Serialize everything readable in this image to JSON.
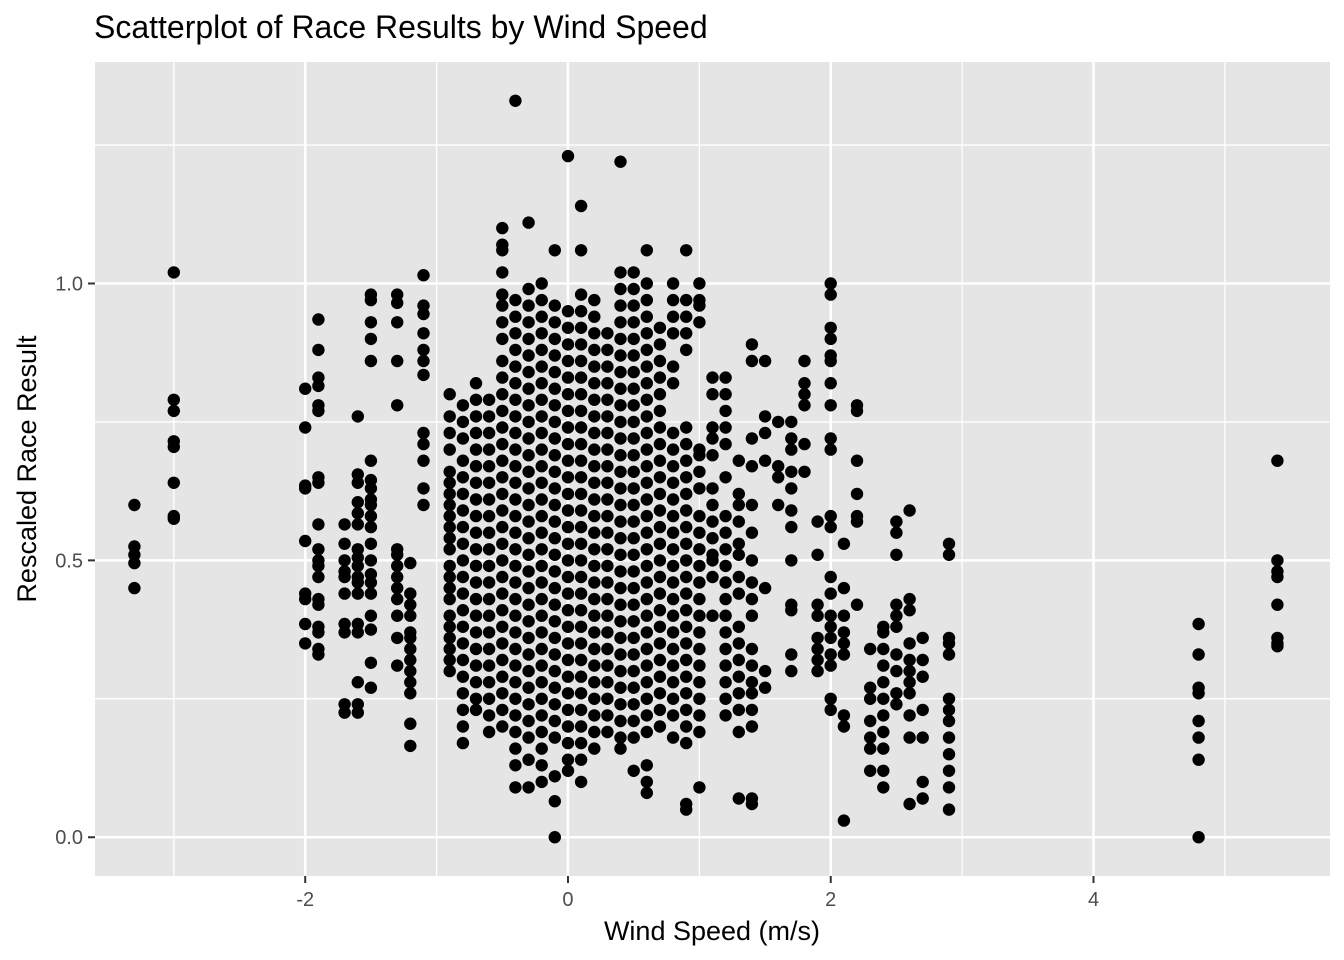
{
  "chart_data": {
    "type": "scatter",
    "title": "Scatterplot of Race Results by Wind Speed",
    "xlabel": "Wind Speed (m/s)",
    "ylabel": "Rescaled Race Result",
    "xlim": [
      -3.6,
      5.8
    ],
    "ylim": [
      -0.07,
      1.4
    ],
    "x_ticks": [
      -2,
      0,
      2,
      4
    ],
    "x_tick_labels": [
      "-2",
      "0",
      "2",
      "4"
    ],
    "y_ticks": [
      0.0,
      0.5,
      1.0
    ],
    "y_tick_labels": [
      "0.0",
      "0.5",
      "1.0"
    ],
    "grid": true,
    "legend": "none",
    "points": [
      {
        "x": -3.3,
        "y": [
          0.6,
          0.525,
          0.51,
          0.495,
          0.45
        ]
      },
      {
        "x": -3.0,
        "y": [
          1.02,
          0.79,
          0.77,
          0.715,
          0.705,
          0.64,
          0.58,
          0.575
        ]
      },
      {
        "x": -2.0,
        "y": [
          0.81,
          0.74,
          0.635,
          0.63,
          0.535,
          0.44,
          0.43,
          0.385,
          0.35
        ]
      },
      {
        "x": -1.9,
        "y": [
          0.935,
          0.88,
          0.83,
          0.815,
          0.78,
          0.77,
          0.65,
          0.64,
          0.565,
          0.52,
          0.5,
          0.49,
          0.47,
          0.43,
          0.42,
          0.38,
          0.37,
          0.34,
          0.33
        ]
      },
      {
        "x": -1.7,
        "y": [
          0.565,
          0.53,
          0.5,
          0.48,
          0.47,
          0.44,
          0.385,
          0.37,
          0.24,
          0.225
        ]
      },
      {
        "x": -1.6,
        "y": [
          0.76,
          0.655,
          0.64,
          0.605,
          0.585,
          0.565,
          0.52,
          0.505,
          0.49,
          0.47,
          0.46,
          0.44,
          0.385,
          0.37,
          0.28,
          0.24,
          0.225
        ]
      },
      {
        "x": -1.5,
        "y": [
          0.98,
          0.97,
          0.93,
          0.9,
          0.86,
          0.68,
          0.645,
          0.63,
          0.61,
          0.6,
          0.58,
          0.56,
          0.53,
          0.5,
          0.475,
          0.46,
          0.44,
          0.4,
          0.375,
          0.315,
          0.27
        ]
      },
      {
        "x": -1.3,
        "y": [
          0.98,
          0.965,
          0.93,
          0.86,
          0.78,
          0.52,
          0.51,
          0.49,
          0.47,
          0.45,
          0.43,
          0.4,
          0.36,
          0.31
        ]
      },
      {
        "x": -1.2,
        "y": [
          0.495,
          0.44,
          0.42,
          0.4,
          0.37,
          0.36,
          0.34,
          0.32,
          0.3,
          0.28,
          0.26,
          0.205,
          0.165
        ]
      },
      {
        "x": -1.1,
        "y": [
          1.015,
          0.96,
          0.945,
          0.91,
          0.88,
          0.86,
          0.835,
          0.73,
          0.71,
          0.68,
          0.63,
          0.6
        ]
      },
      {
        "x": -0.9,
        "y": [
          0.8,
          0.76,
          0.73,
          0.7,
          0.66,
          0.64,
          0.62,
          0.6,
          0.58,
          0.56,
          0.54,
          0.52,
          0.49,
          0.47,
          0.45,
          0.43,
          0.4,
          0.38,
          0.36,
          0.34,
          0.32,
          0.3
        ]
      },
      {
        "x": -0.8,
        "y": [
          0.78,
          0.75,
          0.72,
          0.68,
          0.65,
          0.62,
          0.59,
          0.56,
          0.53,
          0.5,
          0.47,
          0.44,
          0.41,
          0.38,
          0.35,
          0.32,
          0.29,
          0.26,
          0.23,
          0.2,
          0.17
        ]
      },
      {
        "x": -0.7,
        "y": [
          0.82,
          0.79,
          0.76,
          0.73,
          0.7,
          0.67,
          0.64,
          0.61,
          0.58,
          0.55,
          0.52,
          0.49,
          0.46,
          0.43,
          0.4,
          0.37,
          0.34,
          0.31,
          0.28,
          0.25,
          0.23
        ]
      },
      {
        "x": -0.6,
        "y": [
          0.79,
          0.76,
          0.73,
          0.7,
          0.67,
          0.64,
          0.61,
          0.58,
          0.55,
          0.52,
          0.49,
          0.46,
          0.43,
          0.4,
          0.37,
          0.34,
          0.31,
          0.28,
          0.25,
          0.22,
          0.19
        ]
      },
      {
        "x": -0.5,
        "y": [
          1.1,
          1.07,
          1.06,
          1.02,
          0.98,
          0.96,
          0.93,
          0.9,
          0.86,
          0.83,
          0.8,
          0.77,
          0.74,
          0.71,
          0.68,
          0.65,
          0.62,
          0.59,
          0.56,
          0.53,
          0.5,
          0.47,
          0.44,
          0.41,
          0.38,
          0.35,
          0.32,
          0.29,
          0.26,
          0.23,
          0.2
        ]
      },
      {
        "x": -0.4,
        "y": [
          1.33,
          0.97,
          0.94,
          0.91,
          0.88,
          0.85,
          0.82,
          0.79,
          0.76,
          0.73,
          0.7,
          0.67,
          0.64,
          0.61,
          0.58,
          0.55,
          0.52,
          0.49,
          0.46,
          0.43,
          0.4,
          0.37,
          0.34,
          0.31,
          0.28,
          0.25,
          0.22,
          0.19,
          0.16,
          0.13,
          0.09
        ]
      },
      {
        "x": -0.3,
        "y": [
          1.11,
          0.99,
          0.96,
          0.93,
          0.9,
          0.87,
          0.84,
          0.81,
          0.78,
          0.75,
          0.72,
          0.69,
          0.66,
          0.63,
          0.6,
          0.57,
          0.54,
          0.51,
          0.48,
          0.45,
          0.42,
          0.39,
          0.36,
          0.33,
          0.3,
          0.27,
          0.24,
          0.21,
          0.18,
          0.14,
          0.09
        ]
      },
      {
        "x": -0.2,
        "y": [
          1.0,
          0.97,
          0.94,
          0.91,
          0.88,
          0.85,
          0.82,
          0.79,
          0.76,
          0.73,
          0.7,
          0.67,
          0.64,
          0.61,
          0.58,
          0.55,
          0.52,
          0.49,
          0.46,
          0.43,
          0.4,
          0.37,
          0.34,
          0.31,
          0.28,
          0.25,
          0.22,
          0.19,
          0.16,
          0.13,
          0.1
        ]
      },
      {
        "x": -0.1,
        "y": [
          1.06,
          0.96,
          0.93,
          0.9,
          0.87,
          0.84,
          0.81,
          0.78,
          0.75,
          0.72,
          0.69,
          0.66,
          0.63,
          0.6,
          0.57,
          0.54,
          0.51,
          0.48,
          0.45,
          0.42,
          0.39,
          0.36,
          0.33,
          0.3,
          0.27,
          0.24,
          0.21,
          0.18,
          0.11,
          0.065,
          0.0
        ]
      },
      {
        "x": 0.0,
        "y": [
          1.23,
          0.95,
          0.92,
          0.89,
          0.86,
          0.83,
          0.8,
          0.77,
          0.74,
          0.71,
          0.68,
          0.65,
          0.62,
          0.59,
          0.56,
          0.53,
          0.5,
          0.47,
          0.44,
          0.41,
          0.38,
          0.35,
          0.32,
          0.29,
          0.26,
          0.23,
          0.2,
          0.17,
          0.14,
          0.12
        ]
      },
      {
        "x": 0.1,
        "y": [
          1.14,
          1.06,
          0.98,
          0.95,
          0.92,
          0.89,
          0.86,
          0.83,
          0.8,
          0.77,
          0.74,
          0.71,
          0.68,
          0.65,
          0.62,
          0.59,
          0.56,
          0.53,
          0.5,
          0.47,
          0.44,
          0.41,
          0.38,
          0.35,
          0.32,
          0.29,
          0.26,
          0.23,
          0.2,
          0.17,
          0.14,
          0.1
        ]
      },
      {
        "x": 0.2,
        "y": [
          0.97,
          0.94,
          0.91,
          0.88,
          0.85,
          0.82,
          0.79,
          0.76,
          0.73,
          0.7,
          0.67,
          0.64,
          0.61,
          0.58,
          0.55,
          0.52,
          0.49,
          0.46,
          0.43,
          0.4,
          0.37,
          0.34,
          0.31,
          0.28,
          0.25,
          0.22,
          0.19,
          0.16
        ]
      },
      {
        "x": 0.3,
        "y": [
          0.91,
          0.88,
          0.85,
          0.82,
          0.79,
          0.76,
          0.73,
          0.7,
          0.67,
          0.64,
          0.61,
          0.58,
          0.55,
          0.52,
          0.49,
          0.46,
          0.43,
          0.4,
          0.37,
          0.34,
          0.31,
          0.28,
          0.25,
          0.22,
          0.19
        ]
      },
      {
        "x": 0.4,
        "y": [
          1.22,
          1.02,
          0.99,
          0.96,
          0.93,
          0.9,
          0.87,
          0.84,
          0.81,
          0.78,
          0.75,
          0.72,
          0.69,
          0.66,
          0.63,
          0.6,
          0.57,
          0.54,
          0.51,
          0.48,
          0.45,
          0.42,
          0.39,
          0.36,
          0.33,
          0.3,
          0.27,
          0.24,
          0.21,
          0.18,
          0.16
        ]
      },
      {
        "x": 0.5,
        "y": [
          1.02,
          0.99,
          0.96,
          0.93,
          0.9,
          0.87,
          0.84,
          0.81,
          0.78,
          0.75,
          0.72,
          0.69,
          0.66,
          0.63,
          0.6,
          0.57,
          0.54,
          0.51,
          0.48,
          0.45,
          0.42,
          0.39,
          0.36,
          0.33,
          0.3,
          0.27,
          0.24,
          0.21,
          0.18,
          0.12
        ]
      },
      {
        "x": 0.6,
        "y": [
          1.06,
          1.0,
          0.97,
          0.94,
          0.91,
          0.88,
          0.85,
          0.82,
          0.79,
          0.76,
          0.73,
          0.7,
          0.67,
          0.64,
          0.61,
          0.58,
          0.55,
          0.52,
          0.49,
          0.46,
          0.43,
          0.4,
          0.37,
          0.34,
          0.31,
          0.28,
          0.25,
          0.22,
          0.19,
          0.13,
          0.1,
          0.08
        ]
      },
      {
        "x": 0.7,
        "y": [
          0.92,
          0.89,
          0.86,
          0.83,
          0.8,
          0.77,
          0.74,
          0.71,
          0.68,
          0.65,
          0.62,
          0.59,
          0.56,
          0.53,
          0.5,
          0.47,
          0.44,
          0.41,
          0.38,
          0.35,
          0.32,
          0.29,
          0.26,
          0.23,
          0.2
        ]
      },
      {
        "x": 0.8,
        "y": [
          1.0,
          0.97,
          0.94,
          0.91,
          0.85,
          0.82,
          0.73,
          0.7,
          0.67,
          0.64,
          0.61,
          0.58,
          0.55,
          0.52,
          0.49,
          0.46,
          0.43,
          0.4,
          0.37,
          0.34,
          0.31,
          0.28,
          0.25,
          0.22,
          0.18
        ]
      },
      {
        "x": 0.9,
        "y": [
          1.06,
          0.97,
          0.94,
          0.91,
          0.88,
          0.74,
          0.71,
          0.68,
          0.65,
          0.62,
          0.59,
          0.56,
          0.53,
          0.5,
          0.47,
          0.44,
          0.41,
          0.38,
          0.35,
          0.32,
          0.29,
          0.26,
          0.23,
          0.2,
          0.17,
          0.06,
          0.05
        ]
      },
      {
        "x": 1.0,
        "y": [
          1.0,
          0.97,
          0.96,
          0.93,
          0.7,
          0.69,
          0.66,
          0.63,
          0.58,
          0.55,
          0.52,
          0.49,
          0.46,
          0.43,
          0.4,
          0.37,
          0.34,
          0.31,
          0.28,
          0.25,
          0.22,
          0.19,
          0.09
        ]
      },
      {
        "x": 1.1,
        "y": [
          0.83,
          0.8,
          0.74,
          0.72,
          0.69,
          0.63,
          0.6,
          0.57,
          0.54,
          0.51,
          0.5,
          0.47,
          0.4
        ]
      },
      {
        "x": 1.2,
        "y": [
          0.83,
          0.8,
          0.77,
          0.74,
          0.71,
          0.65,
          0.58,
          0.55,
          0.52,
          0.49,
          0.46,
          0.43,
          0.4,
          0.37,
          0.34,
          0.31,
          0.28,
          0.25,
          0.22
        ]
      },
      {
        "x": 1.3,
        "y": [
          0.68,
          0.62,
          0.6,
          0.57,
          0.53,
          0.51,
          0.47,
          0.44,
          0.38,
          0.35,
          0.32,
          0.29,
          0.26,
          0.23,
          0.19,
          0.07
        ]
      },
      {
        "x": 1.4,
        "y": [
          0.89,
          0.86,
          0.72,
          0.67,
          0.6,
          0.55,
          0.5,
          0.46,
          0.43,
          0.4,
          0.34,
          0.31,
          0.28,
          0.26,
          0.23,
          0.2,
          0.07,
          0.06
        ]
      },
      {
        "x": 1.5,
        "y": [
          0.86,
          0.76,
          0.73,
          0.68,
          0.45,
          0.3,
          0.27
        ]
      },
      {
        "x": 1.6,
        "y": [
          0.75,
          0.67,
          0.65,
          0.6
        ]
      },
      {
        "x": 1.7,
        "y": [
          0.75,
          0.72,
          0.7,
          0.66,
          0.63,
          0.59,
          0.56,
          0.5,
          0.42,
          0.41,
          0.33,
          0.3
        ]
      },
      {
        "x": 1.8,
        "y": [
          0.86,
          0.82,
          0.8,
          0.78,
          0.71,
          0.66
        ]
      },
      {
        "x": 1.9,
        "y": [
          0.57,
          0.51,
          0.42,
          0.4,
          0.36,
          0.34,
          0.32,
          0.3
        ]
      },
      {
        "x": 2.0,
        "y": [
          1.0,
          0.98,
          0.92,
          0.9,
          0.87,
          0.86,
          0.82,
          0.78,
          0.72,
          0.7,
          0.58,
          0.56,
          0.47,
          0.44,
          0.4,
          0.38,
          0.36,
          0.33,
          0.31,
          0.25,
          0.23
        ]
      },
      {
        "x": 2.1,
        "y": [
          0.53,
          0.45,
          0.4,
          0.37,
          0.35,
          0.33,
          0.22,
          0.2,
          0.03
        ]
      },
      {
        "x": 2.2,
        "y": [
          0.78,
          0.77,
          0.68,
          0.62,
          0.58,
          0.57,
          0.42
        ]
      },
      {
        "x": 2.3,
        "y": [
          0.34,
          0.27,
          0.25,
          0.21,
          0.18,
          0.16,
          0.12
        ]
      },
      {
        "x": 2.4,
        "y": [
          0.38,
          0.37,
          0.34,
          0.31,
          0.28,
          0.25,
          0.22,
          0.19,
          0.16,
          0.12,
          0.09
        ]
      },
      {
        "x": 2.5,
        "y": [
          0.57,
          0.55,
          0.51,
          0.42,
          0.4,
          0.38,
          0.33,
          0.3,
          0.26,
          0.24
        ]
      },
      {
        "x": 2.6,
        "y": [
          0.59,
          0.43,
          0.41,
          0.35,
          0.32,
          0.3,
          0.28,
          0.26,
          0.22,
          0.18,
          0.06
        ]
      },
      {
        "x": 2.7,
        "y": [
          0.36,
          0.32,
          0.29,
          0.23,
          0.18,
          0.1,
          0.07
        ]
      },
      {
        "x": 2.9,
        "y": [
          0.53,
          0.51,
          0.36,
          0.35,
          0.33,
          0.25,
          0.23,
          0.21,
          0.18,
          0.15,
          0.12,
          0.09,
          0.05
        ]
      },
      {
        "x": 4.8,
        "y": [
          0.385,
          0.33,
          0.27,
          0.26,
          0.21,
          0.18,
          0.14,
          0.0
        ]
      },
      {
        "x": 5.4,
        "y": [
          0.68,
          0.5,
          0.48,
          0.47,
          0.42,
          0.36,
          0.35,
          0.345
        ]
      }
    ]
  }
}
